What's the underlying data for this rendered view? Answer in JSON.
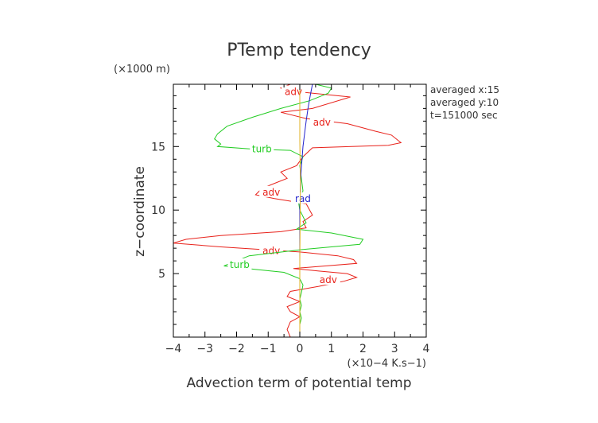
{
  "chart_data": {
    "type": "line",
    "title": "PTemp tendency",
    "xlabel": "Advection term of potential temp",
    "ylabel": "z−coordinate",
    "x_unit": "(×10−4 K.s−1)",
    "y_unit": "(×1000 m)",
    "xlim": [
      -4,
      4
    ],
    "ylim": [
      0,
      19.9
    ],
    "x_ticks": [
      -4,
      -3,
      -2,
      -1,
      0,
      1,
      2,
      3,
      4
    ],
    "x_tick_labels": [
      "−4",
      "−3",
      "−2",
      "−1",
      "0",
      "1",
      "2",
      "3",
      "4"
    ],
    "y_ticks": [
      5,
      10,
      15
    ],
    "y_tick_labels": [
      "5",
      "10",
      "15"
    ],
    "grid": false,
    "info_text": [
      "averaged  x:15",
      "averaged  y:10",
      "t=151000 sec"
    ],
    "series": [
      {
        "name": "adv",
        "color": "#e8221b",
        "label_positions": [
          [
            -0.2,
            19.3
          ],
          [
            0.7,
            16.9
          ],
          [
            -0.9,
            11.4
          ],
          [
            -0.9,
            6.8
          ],
          [
            0.9,
            4.5
          ]
        ],
        "x": [
          -0.3,
          -0.6,
          -0.4,
          1.6,
          0.4,
          -0.6,
          0.2,
          1.5,
          2.4,
          2.9,
          3.2,
          2.8,
          0.4,
          0.1,
          -0.1,
          -0.6,
          -0.4,
          -0.8,
          -1.2,
          -1.4,
          -0.8,
          0.2,
          0.4,
          0.1,
          0.2,
          -0.6,
          -2.5,
          -3.6,
          -4.0,
          -2.5,
          0.0,
          1.2,
          1.7,
          1.8,
          0.8,
          -0.2,
          0.6,
          1.5,
          1.8,
          1.4,
          0.6,
          -0.3,
          -0.4,
          0.0,
          -0.4,
          -0.3,
          0.0,
          -0.3,
          -0.4,
          -0.3
        ],
        "y": [
          19.9,
          19.6,
          19.4,
          18.9,
          18.0,
          17.7,
          17.2,
          16.8,
          16.2,
          15.9,
          15.3,
          15.1,
          14.9,
          14.2,
          13.5,
          13.0,
          12.5,
          12.1,
          11.7,
          11.2,
          10.9,
          10.5,
          9.6,
          9.1,
          8.6,
          8.3,
          8.0,
          7.7,
          7.4,
          7.1,
          6.7,
          6.4,
          6.1,
          5.8,
          5.6,
          5.4,
          5.2,
          5.0,
          4.7,
          4.4,
          4.0,
          3.6,
          3.2,
          2.8,
          2.4,
          2.0,
          1.6,
          1.2,
          0.6,
          0.0
        ]
      },
      {
        "name": "turb",
        "color": "#22cc22",
        "label_positions": [
          [
            -1.2,
            14.8
          ],
          [
            -1.9,
            5.7
          ]
        ],
        "x": [
          0.5,
          1.0,
          0.9,
          0.3,
          -0.6,
          -1.5,
          -2.3,
          -2.6,
          -2.7,
          -2.5,
          -2.6,
          -1.5,
          -0.3,
          0.1,
          0.0,
          0.05,
          0.1,
          -0.05,
          0.0,
          0.2,
          -0.1,
          1.0,
          2.0,
          1.9,
          0.1,
          -1.6,
          -2.4,
          -1.3,
          -0.5,
          0.0,
          0.1,
          0.05,
          0.0,
          0.05,
          0.0,
          0.05,
          0.0,
          0.0,
          0.0
        ],
        "y": [
          19.9,
          19.6,
          19.2,
          18.6,
          18.0,
          17.3,
          16.6,
          16.0,
          15.6,
          15.2,
          15.0,
          14.8,
          14.7,
          14.2,
          13.5,
          12.5,
          11.5,
          10.8,
          10.0,
          9.0,
          8.5,
          8.2,
          7.7,
          7.3,
          6.9,
          6.4,
          5.6,
          5.3,
          5.1,
          4.6,
          4.1,
          3.5,
          3.0,
          2.5,
          2.0,
          1.5,
          1.0,
          0.5,
          0.0
        ]
      },
      {
        "name": "rad",
        "color": "#2222cc",
        "label_positions": [
          [
            0.1,
            10.9
          ]
        ],
        "x": [
          0.4,
          0.33,
          0.26,
          0.2,
          0.15,
          0.1,
          0.07,
          0.04,
          0.02,
          0.01,
          0.0,
          0.0,
          0.0
        ],
        "y": [
          19.9,
          19.0,
          18.0,
          17.0,
          16.0,
          15.0,
          14.0,
          13.0,
          12.0,
          11.0,
          10.0,
          5.0,
          0.0
        ]
      },
      {
        "name": "",
        "color": "#e0b020",
        "x": [
          0.0,
          0.0,
          0.02,
          0.0,
          0.0
        ],
        "y": [
          19.9,
          15.5,
          12.0,
          6.0,
          0.0
        ]
      }
    ]
  }
}
